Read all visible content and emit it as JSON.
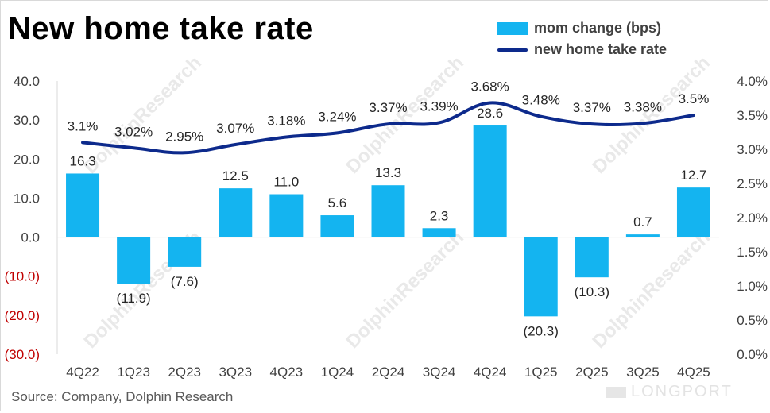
{
  "title": "New home take rate",
  "source": "Source: Company, Dolphin Research",
  "watermark": {
    "text": "DolphinResearch",
    "brand": "LONGPORT"
  },
  "colors": {
    "bar": "#14b4f0",
    "line": "#0d2a8c",
    "negative_tick": "#c00000",
    "axis_text": "#404040",
    "label_text": "#262626",
    "watermark": "#e9e9e9"
  },
  "chart_data": {
    "type": "bar",
    "categories": [
      "4Q22",
      "1Q23",
      "2Q23",
      "3Q23",
      "4Q23",
      "1Q24",
      "2Q24",
      "3Q24",
      "4Q24",
      "1Q25",
      "2Q25",
      "3Q25",
      "4Q25"
    ],
    "series": [
      {
        "name": "mom change (bps)",
        "type": "bar",
        "axis": "left",
        "values": [
          16.3,
          -11.9,
          -7.6,
          12.5,
          11.0,
          5.6,
          13.3,
          2.3,
          28.6,
          -20.3,
          -10.3,
          0.7,
          12.7
        ],
        "labels": [
          "16.3",
          "(11.9)",
          "(7.6)",
          "12.5",
          "11.0",
          "5.6",
          "13.3",
          "2.3",
          "28.6",
          "(20.3)",
          "(10.3)",
          "0.7",
          "12.7"
        ]
      },
      {
        "name": "new home take rate",
        "type": "line",
        "axis": "right",
        "values": [
          3.1,
          3.02,
          2.95,
          3.07,
          3.18,
          3.24,
          3.37,
          3.39,
          3.68,
          3.48,
          3.37,
          3.38,
          3.5
        ],
        "labels": [
          "3.1%",
          "3.02%",
          "2.95%",
          "3.07%",
          "3.18%",
          "3.24%",
          "3.37%",
          "3.39%",
          "3.68%",
          "3.48%",
          "3.37%",
          "3.38%",
          "3.5%"
        ]
      }
    ],
    "left_axis": {
      "ylim": [
        -30,
        40
      ],
      "ticks": [
        40,
        30,
        20,
        10,
        0,
        -10,
        -20,
        -30
      ],
      "tick_labels": [
        "40.0",
        "30.0",
        "20.0",
        "10.0",
        "0.0",
        "(10.0)",
        "(20.0)",
        "(30.0)"
      ]
    },
    "right_axis": {
      "ylim": [
        0,
        4
      ],
      "ticks": [
        4,
        3.5,
        3,
        2.5,
        2,
        1.5,
        1,
        0.5,
        0
      ],
      "tick_labels": [
        "4.0%",
        "3.5%",
        "3.0%",
        "2.5%",
        "2.0%",
        "1.5%",
        "1.0%",
        "0.5%",
        "0.0%"
      ]
    },
    "grid": false,
    "legend": "top-right"
  }
}
